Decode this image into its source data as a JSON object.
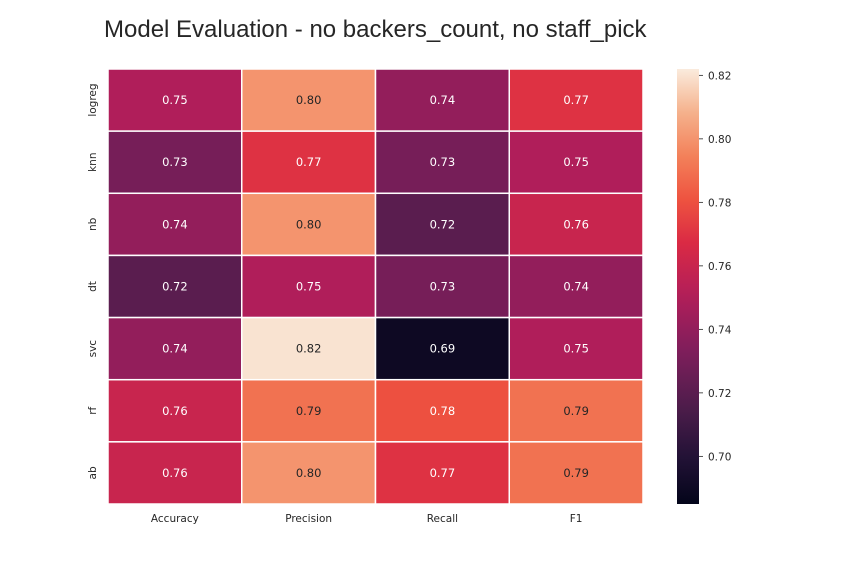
{
  "chart_data": {
    "type": "heatmap",
    "title": "Model Evaluation - no backers_count, no staff_pick",
    "columns": [
      "Accuracy",
      "Precision",
      "Recall",
      "F1"
    ],
    "rows": [
      "logreg",
      "knn",
      "nb",
      "dt",
      "svc",
      "rf",
      "ab"
    ],
    "values": [
      [
        0.75,
        0.8,
        0.74,
        0.77
      ],
      [
        0.73,
        0.77,
        0.73,
        0.75
      ],
      [
        0.74,
        0.8,
        0.72,
        0.76
      ],
      [
        0.72,
        0.75,
        0.73,
        0.74
      ],
      [
        0.74,
        0.82,
        0.69,
        0.75
      ],
      [
        0.76,
        0.79,
        0.78,
        0.79
      ],
      [
        0.76,
        0.8,
        0.77,
        0.79
      ]
    ],
    "labels": [
      [
        "0.75",
        "0.80",
        "0.74",
        "0.77"
      ],
      [
        "0.73",
        "0.77",
        "0.73",
        "0.75"
      ],
      [
        "0.74",
        "0.80",
        "0.72",
        "0.76"
      ],
      [
        "0.72",
        "0.75",
        "0.73",
        "0.74"
      ],
      [
        "0.74",
        "0.82",
        "0.69",
        "0.75"
      ],
      [
        "0.76",
        "0.79",
        "0.78",
        "0.79"
      ],
      [
        "0.76",
        "0.80",
        "0.77",
        "0.79"
      ]
    ],
    "colormap": "rocket",
    "vmin": 0.685,
    "vmax": 0.822,
    "colorbar_ticks": [
      0.7,
      0.72,
      0.74,
      0.76,
      0.78,
      0.8,
      0.82
    ],
    "colorbar_tick_labels": [
      "0.70",
      "0.72",
      "0.74",
      "0.76",
      "0.78",
      "0.80",
      "0.82"
    ],
    "colorbar_position": "right",
    "grid": false
  }
}
